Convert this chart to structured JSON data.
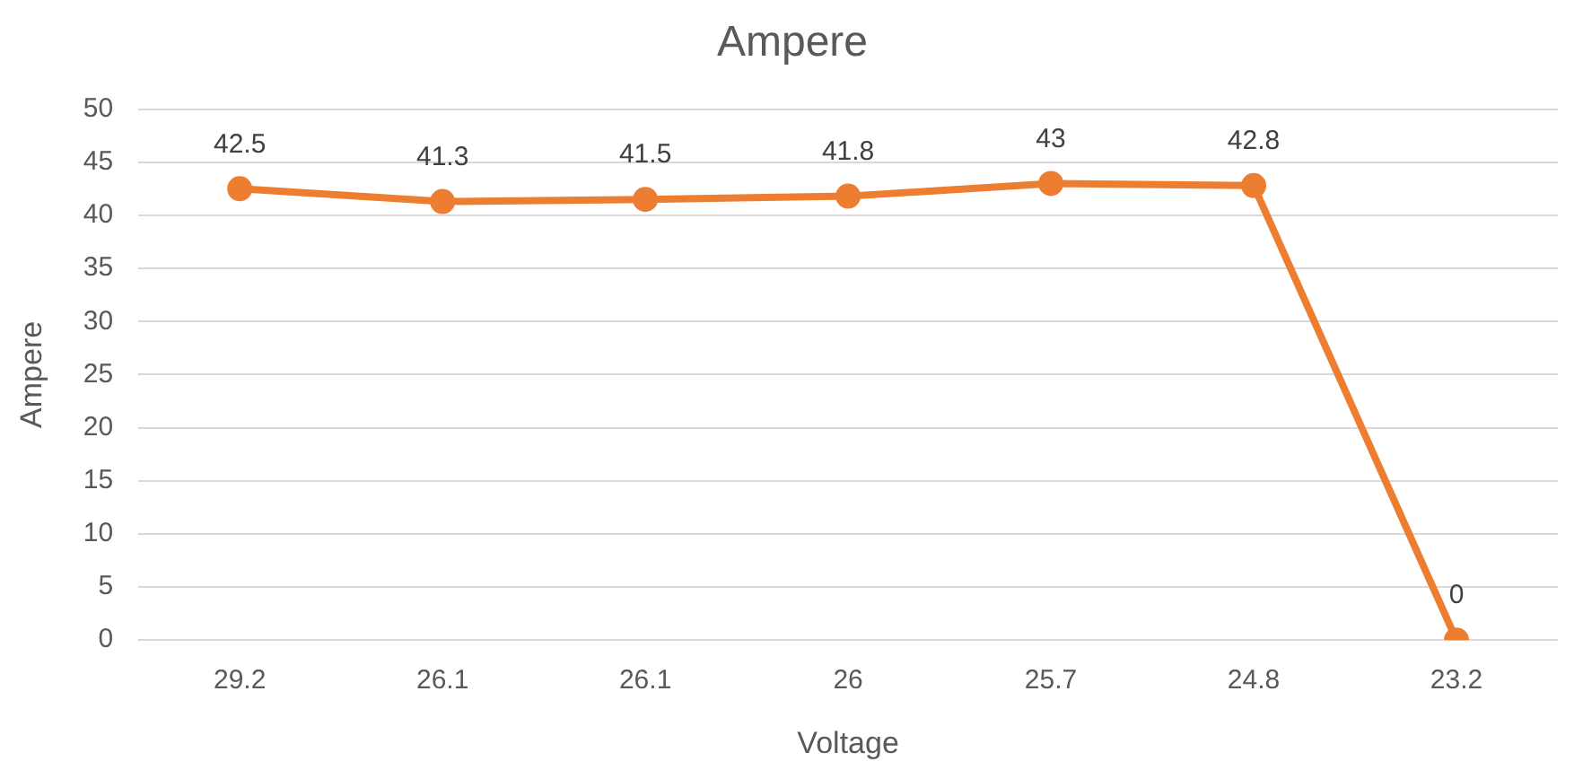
{
  "chart_data": {
    "type": "line",
    "title": "Ampere",
    "xlabel": "Voltage",
    "ylabel": "Ampere",
    "categories": [
      "29.2",
      "26.1",
      "26.1",
      "26",
      "25.7",
      "24.8",
      "23.2"
    ],
    "values": [
      42.5,
      41.3,
      41.5,
      41.8,
      43,
      42.8,
      0
    ],
    "color": "#ed7d31",
    "ylim": [
      0,
      50
    ],
    "yticks": [
      0,
      5,
      10,
      15,
      20,
      25,
      30,
      35,
      40,
      45,
      50
    ],
    "grid": "y",
    "marker": "circle",
    "line_style": "solid",
    "data_labels": true
  }
}
